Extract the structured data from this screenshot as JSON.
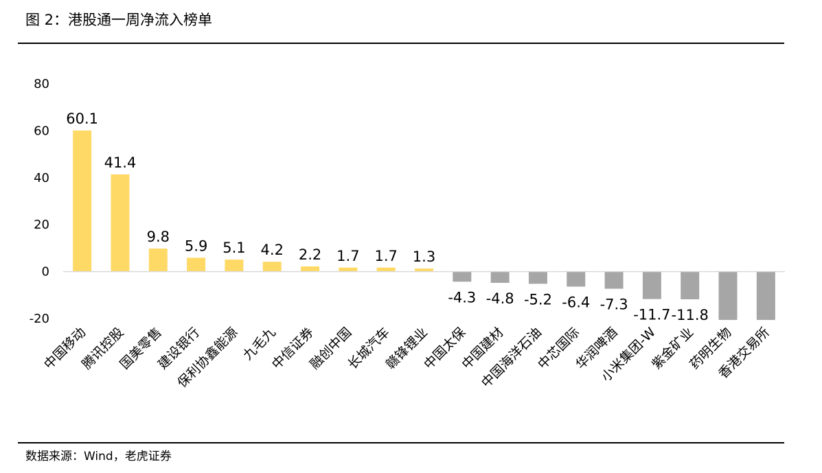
{
  "title": "图 2：港股通一周净流入榜单",
  "source": "数据来源：Wind，老虎证券",
  "chart_data": {
    "type": "bar",
    "categories": [
      "中国移动",
      "腾讯控股",
      "国美零售",
      "建设银行",
      "保利协鑫能源",
      "九毛九",
      "中信证券",
      "融创中国",
      "长城汽车",
      "赣锋锂业",
      "中国太保",
      "中国建材",
      "中国海洋石油",
      "中芯国际",
      "华润啤酒",
      "小米集团-W",
      "紫金矿业",
      "药明生物",
      "香港交易所"
    ],
    "values": [
      60.1,
      41.4,
      9.8,
      5.9,
      5.1,
      4.2,
      2.2,
      1.7,
      1.7,
      1.3,
      -4.3,
      -4.8,
      -5.2,
      -6.4,
      -7.3,
      -11.7,
      -11.8,
      -20.6,
      -20.6
    ],
    "data_labels": [
      "60.1",
      "41.4",
      "9.8",
      "5.9",
      "5.1",
      "4.2",
      "2.2",
      "1.7",
      "1.7",
      "1.3",
      "-4.3",
      "-4.8",
      "-5.2",
      "-6.4",
      "-7.3",
      "-11.7",
      "-11.8",
      "",
      ""
    ],
    "ylim": [
      -20,
      80
    ],
    "yticks": [
      80,
      60,
      40,
      20,
      0,
      -20
    ],
    "ytick_labels": [
      "80",
      "60",
      "40",
      "20",
      "0",
      "-20"
    ],
    "xlabel": "",
    "ylabel": "",
    "grid": false,
    "legend": "none",
    "colors": {
      "positive": "#FFD966",
      "negative": "#A6A6A6",
      "axis": "#D9D9D9",
      "text": "#000000"
    }
  }
}
